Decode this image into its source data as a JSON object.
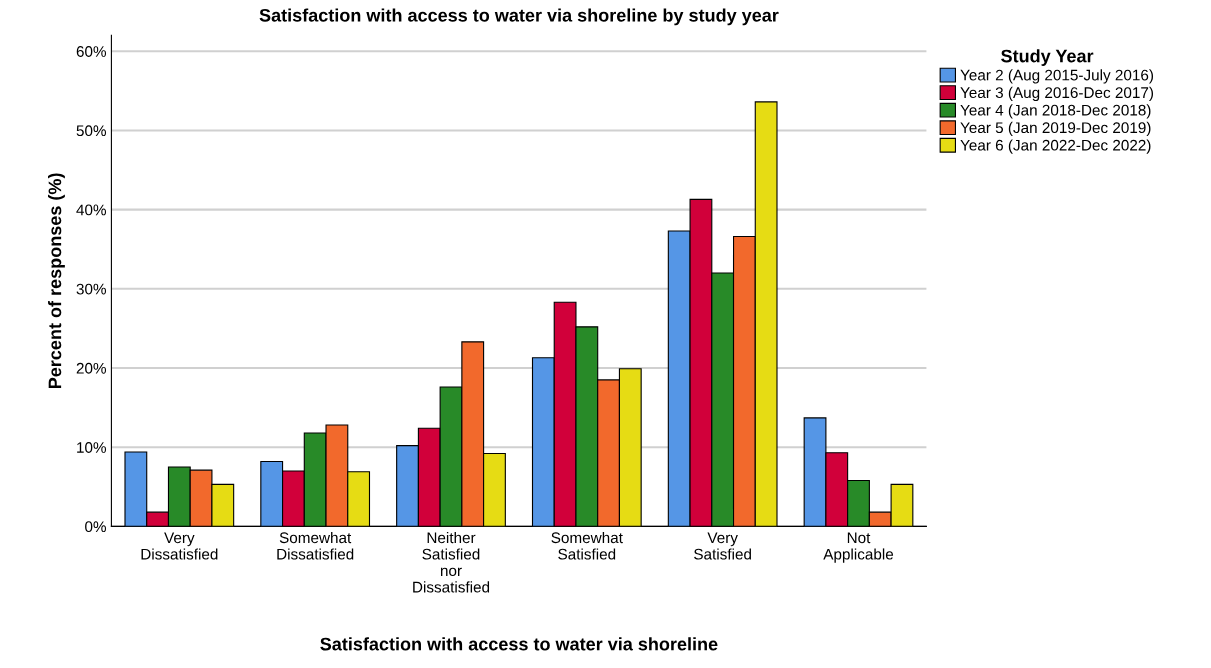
{
  "chart_data": {
    "type": "bar",
    "title": "Satisfaction with access to water via shoreline by study year",
    "xlabel": "Satisfaction with access to water via shoreline",
    "ylabel": "Percent of responses (%)",
    "legend_title": "Study Year",
    "categories": [
      "Very\nDissatisfied",
      "Somewhat\nDissatisfied",
      "Neither\nSatisfied\nnor\nDissatisfied",
      "Somewhat\nSatisfied",
      "Very\nSatisfied",
      "Not\nApplicable"
    ],
    "series": [
      {
        "name": "Year 2 (Aug 2015-July 2016)",
        "color": "#5596e6",
        "values": [
          9.4,
          8.2,
          10.2,
          21.3,
          37.3,
          13.7
        ]
      },
      {
        "name": "Year 3 (Aug 2016-Dec 2017)",
        "color": "#d1003a",
        "values": [
          1.8,
          7.0,
          12.4,
          28.3,
          41.3,
          9.3
        ]
      },
      {
        "name": "Year 4 (Jan 2018-Dec 2018)",
        "color": "#288a28",
        "values": [
          7.5,
          11.8,
          17.6,
          25.2,
          32.0,
          5.8
        ]
      },
      {
        "name": "Year 5 (Jan 2019-Dec 2019)",
        "color": "#f2692c",
        "values": [
          7.1,
          12.8,
          23.3,
          18.5,
          36.6,
          1.8
        ]
      },
      {
        "name": "Year 6 (Jan 2022-Dec 2022)",
        "color": "#e6dc14",
        "values": [
          5.3,
          6.9,
          9.2,
          19.9,
          53.6,
          5.3
        ]
      }
    ],
    "ylim": [
      0,
      62
    ],
    "yticks": [
      {
        "value": 0,
        "label": "0%"
      },
      {
        "value": 10,
        "label": "10%"
      },
      {
        "value": 20,
        "label": "20%"
      },
      {
        "value": 30,
        "label": "30%"
      },
      {
        "value": 40,
        "label": "40%"
      },
      {
        "value": 50,
        "label": "50%"
      },
      {
        "value": 60,
        "label": "60%"
      }
    ],
    "grid": "y",
    "legend": "right"
  }
}
